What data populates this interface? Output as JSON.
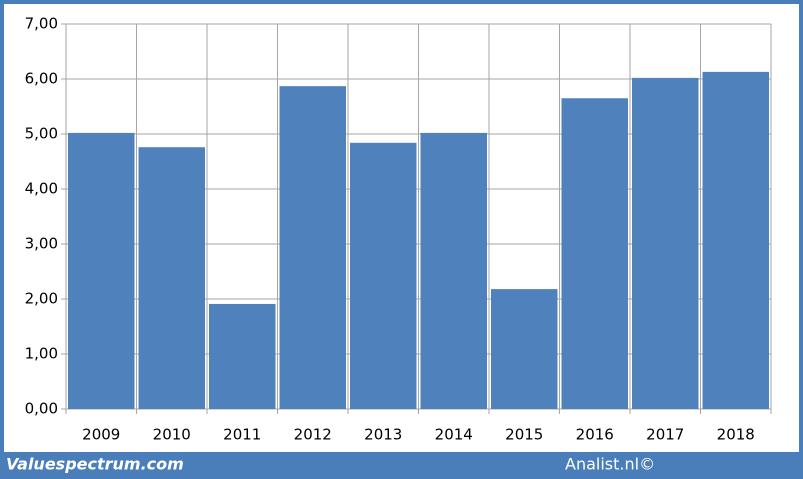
{
  "chart_data": {
    "type": "bar",
    "categories": [
      "2009",
      "2010",
      "2011",
      "2012",
      "2013",
      "2014",
      "2015",
      "2016",
      "2017",
      "2018"
    ],
    "values": [
      5.02,
      4.76,
      1.91,
      5.87,
      4.84,
      5.02,
      2.18,
      5.65,
      6.02,
      6.13
    ],
    "color": "#4f81bd",
    "ylim": [
      0,
      7
    ],
    "yticks": [
      {
        "value": 0,
        "label": "0,00"
      },
      {
        "value": 1,
        "label": "1,00"
      },
      {
        "value": 2,
        "label": "2,00"
      },
      {
        "value": 3,
        "label": "3,00"
      },
      {
        "value": 4,
        "label": "4,00"
      },
      {
        "value": 5,
        "label": "5,00"
      },
      {
        "value": 6,
        "label": "6,00"
      },
      {
        "value": 7,
        "label": "7,00"
      }
    ],
    "grid": true
  },
  "footer": {
    "left": "Valuespectrum.com",
    "right": "Analist.nl©"
  }
}
